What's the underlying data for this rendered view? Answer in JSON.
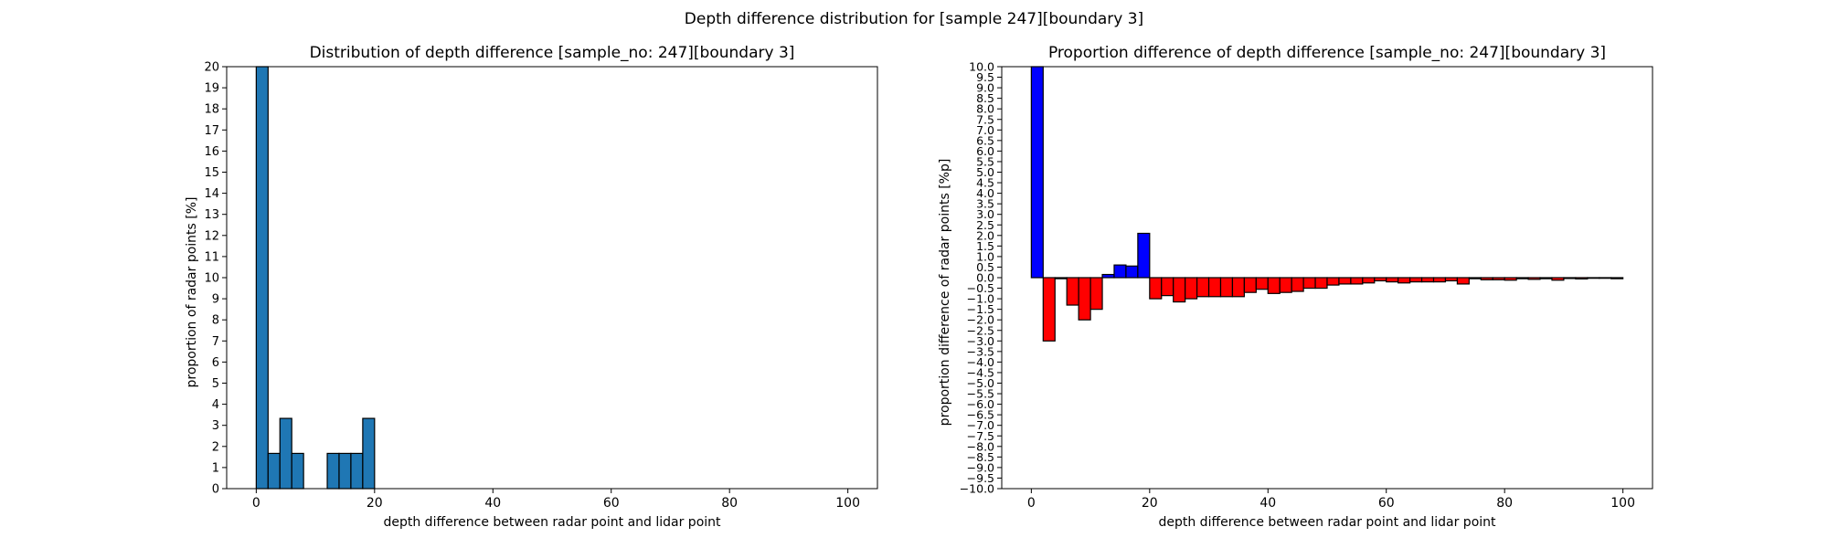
{
  "suptitle": "Depth difference distribution for [sample 247][boundary 3]",
  "chart_data": [
    {
      "type": "bar",
      "title": "Distribution of depth difference [sample_no: 247][boundary 3]",
      "xlabel": "depth difference between radar point and lidar point",
      "ylabel": "proportion of radar points [%]",
      "xlim": [
        -5,
        105
      ],
      "ylim": [
        0,
        20
      ],
      "xticks": [
        0,
        20,
        40,
        60,
        80,
        100
      ],
      "yticks": [
        0,
        1,
        2,
        3,
        4,
        5,
        6,
        7,
        8,
        9,
        10,
        11,
        12,
        13,
        14,
        15,
        16,
        17,
        18,
        19,
        20
      ],
      "bin_width": 2,
      "bar_color": "#1f77b4",
      "edge_color": "#000000",
      "bins": [
        {
          "x": 0,
          "value": 20
        },
        {
          "x": 2,
          "value": 1.67
        },
        {
          "x": 4,
          "value": 3.33
        },
        {
          "x": 6,
          "value": 1.67
        },
        {
          "x": 12,
          "value": 1.67
        },
        {
          "x": 14,
          "value": 1.67
        },
        {
          "x": 16,
          "value": 1.67
        },
        {
          "x": 18,
          "value": 3.33
        }
      ]
    },
    {
      "type": "bar",
      "title": "Proportion difference of depth difference [sample_no: 247][boundary 3]",
      "xlabel": "depth difference between radar point and lidar point",
      "ylabel": "proportion difference of radar points [%p]",
      "xlim": [
        -5,
        105
      ],
      "ylim": [
        -10,
        10
      ],
      "xticks": [
        0,
        20,
        40,
        60,
        80,
        100
      ],
      "yticks": [
        "-10.0",
        "-9.5",
        "-9.0",
        "-8.5",
        "-8.0",
        "-7.5",
        "-7.0",
        "-6.5",
        "-6.0",
        "-5.5",
        "-5.0",
        "-4.5",
        "-4.0",
        "-3.5",
        "-3.0",
        "-2.5",
        "-2.0",
        "-1.5",
        "-1.0",
        "-0.5",
        "0.0",
        "0.5",
        "1.0",
        "1.5",
        "2.0",
        "2.5",
        "3.0",
        "3.5",
        "4.0",
        "4.5",
        "5.0",
        "5.5",
        "6.0",
        "6.5",
        "7.0",
        "7.5",
        "8.0",
        "8.5",
        "9.0",
        "9.5",
        "10.0"
      ],
      "bin_width": 2,
      "positive_color": "#0000ff",
      "negative_color": "#ff0000",
      "edge_color": "#000000",
      "bins": [
        {
          "x": 0,
          "value": 10
        },
        {
          "x": 2,
          "value": -3.0
        },
        {
          "x": 4,
          "value": -0.05
        },
        {
          "x": 6,
          "value": -1.3
        },
        {
          "x": 8,
          "value": -2.0
        },
        {
          "x": 10,
          "value": -1.5
        },
        {
          "x": 12,
          "value": 0.15
        },
        {
          "x": 14,
          "value": 0.6
        },
        {
          "x": 16,
          "value": 0.55
        },
        {
          "x": 18,
          "value": 2.1
        },
        {
          "x": 20,
          "value": -1.0
        },
        {
          "x": 22,
          "value": -0.85
        },
        {
          "x": 24,
          "value": -1.15
        },
        {
          "x": 26,
          "value": -1.0
        },
        {
          "x": 28,
          "value": -0.9
        },
        {
          "x": 30,
          "value": -0.9
        },
        {
          "x": 32,
          "value": -0.9
        },
        {
          "x": 34,
          "value": -0.9
        },
        {
          "x": 36,
          "value": -0.7
        },
        {
          "x": 38,
          "value": -0.55
        },
        {
          "x": 40,
          "value": -0.75
        },
        {
          "x": 42,
          "value": -0.7
        },
        {
          "x": 44,
          "value": -0.65
        },
        {
          "x": 46,
          "value": -0.5
        },
        {
          "x": 48,
          "value": -0.5
        },
        {
          "x": 50,
          "value": -0.35
        },
        {
          "x": 52,
          "value": -0.3
        },
        {
          "x": 54,
          "value": -0.3
        },
        {
          "x": 56,
          "value": -0.25
        },
        {
          "x": 58,
          "value": -0.15
        },
        {
          "x": 60,
          "value": -0.2
        },
        {
          "x": 62,
          "value": -0.25
        },
        {
          "x": 64,
          "value": -0.2
        },
        {
          "x": 66,
          "value": -0.2
        },
        {
          "x": 68,
          "value": -0.2
        },
        {
          "x": 70,
          "value": -0.15
        },
        {
          "x": 72,
          "value": -0.3
        },
        {
          "x": 74,
          "value": -0.05
        },
        {
          "x": 76,
          "value": -0.1
        },
        {
          "x": 78,
          "value": -0.1
        },
        {
          "x": 80,
          "value": -0.12
        },
        {
          "x": 82,
          "value": -0.05
        },
        {
          "x": 84,
          "value": -0.08
        },
        {
          "x": 86,
          "value": -0.05
        },
        {
          "x": 88,
          "value": -0.12
        },
        {
          "x": 90,
          "value": -0.04
        },
        {
          "x": 92,
          "value": -0.06
        },
        {
          "x": 94,
          "value": -0.03
        },
        {
          "x": 96,
          "value": -0.03
        },
        {
          "x": 98,
          "value": -0.05
        }
      ]
    }
  ]
}
